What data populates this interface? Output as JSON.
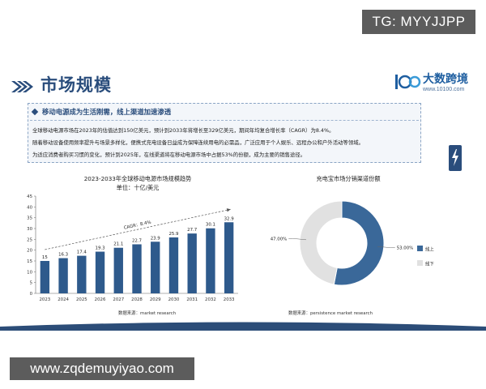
{
  "watermark_top": "TG: MYYJJPP",
  "watermark_bottom": "www.zqdemuyiyao.com",
  "header": {
    "title": "市场规模",
    "logo_text": "大数跨境",
    "logo_url": "www.10100.com"
  },
  "info": {
    "heading": "移动电源成为生活刚需，线上渠道加速渗透",
    "paragraphs": [
      "全球移动电源市场在2023年的估值达到150亿美元，预计到2033年将增长至329亿美元，期间年均复合增长率（CAGR）为8.4%。",
      "随着移动设备使用频率提升与场景多样化，便携式充电设备日益成为保障连续用电的必需品，广泛应用于个人娱乐、远程办公和户外活动等领域。",
      "为适应消费者购买习惯的变化，预计到2025年，在线渠道将在移动电源市场中占据53%的份额，成为主要的销售途径。"
    ]
  },
  "colors": {
    "navy": "#2a4d7c",
    "bar": "#2e5a8c",
    "slice_online": "#3a6899",
    "slice_offline": "#e1e1e1"
  },
  "chart_data": [
    {
      "type": "bar",
      "title": "2023-2033年全球移动电源市场规模趋势",
      "subtitle": "单位：十亿/美元",
      "categories": [
        "2023",
        "2024",
        "2025",
        "2026",
        "2027",
        "2028",
        "2029",
        "2030",
        "2031",
        "2032",
        "2033"
      ],
      "values": [
        15,
        16.3,
        17.4,
        19.3,
        21.1,
        22.7,
        23.9,
        25.9,
        27.7,
        30.1,
        32.9
      ],
      "value_labels": [
        "15",
        "16.3",
        "17.4",
        "19.3",
        "21.1",
        "22.7",
        "23.9",
        "25.9",
        "27.7",
        "30.1",
        "32.9"
      ],
      "ylim": [
        0,
        45
      ],
      "yticks": [
        0,
        5,
        10,
        15,
        20,
        25,
        30,
        35,
        40,
        45
      ],
      "annotation": "CAGR：8.4%",
      "source": "数据来源：market research",
      "grid": false
    },
    {
      "type": "pie",
      "title": "充电宝市场分销渠道份额",
      "labels": [
        "线上",
        "线下"
      ],
      "values": [
        53,
        47
      ],
      "value_labels": [
        "53.00%",
        "47.00%"
      ],
      "donut": true,
      "legend": "right",
      "source": "数据来源：persistence market research"
    }
  ]
}
